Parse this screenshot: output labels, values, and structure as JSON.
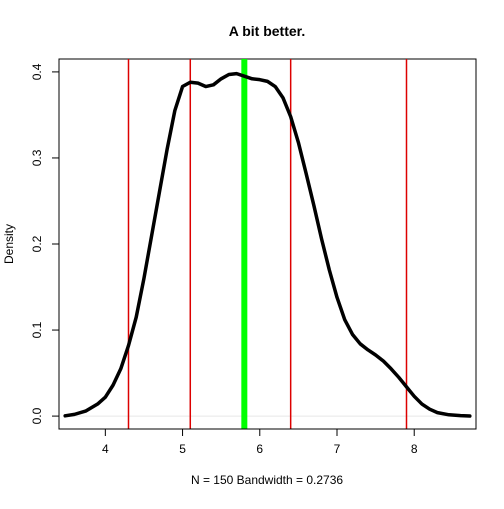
{
  "chart_data": {
    "type": "line",
    "title": "A bit better.",
    "xlabel": "N = 150   Bandwidth = 0.2736",
    "ylabel": "Density",
    "xlim": [
      3.4,
      8.8
    ],
    "ylim": [
      -0.015,
      0.415
    ],
    "x_ticks": [
      4,
      5,
      6,
      7,
      8
    ],
    "x_tick_labels": [
      "4",
      "5",
      "6",
      "7",
      "8"
    ],
    "y_ticks": [
      0.0,
      0.1,
      0.2,
      0.3,
      0.4
    ],
    "y_tick_labels": [
      "0.0",
      "0.1",
      "0.2",
      "0.3",
      "0.4"
    ],
    "grid": false,
    "legend": "none",
    "series": [
      {
        "x": [
          3.48,
          3.6,
          3.75,
          3.9,
          4.0,
          4.1,
          4.2,
          4.3,
          4.4,
          4.5,
          4.6,
          4.7,
          4.8,
          4.9,
          5.0,
          5.1,
          5.2,
          5.3,
          5.4,
          5.5,
          5.6,
          5.7,
          5.8,
          5.9,
          6.0,
          6.1,
          6.2,
          6.3,
          6.4,
          6.5,
          6.6,
          6.7,
          6.8,
          6.9,
          7.0,
          7.1,
          7.2,
          7.3,
          7.4,
          7.5,
          7.6,
          7.7,
          7.8,
          7.9,
          8.0,
          8.1,
          8.2,
          8.3,
          8.45,
          8.6,
          8.72
        ],
        "values": [
          0.0003,
          0.002,
          0.006,
          0.014,
          0.022,
          0.036,
          0.055,
          0.082,
          0.115,
          0.16,
          0.21,
          0.26,
          0.31,
          0.355,
          0.383,
          0.388,
          0.387,
          0.383,
          0.385,
          0.392,
          0.397,
          0.398,
          0.395,
          0.392,
          0.391,
          0.389,
          0.383,
          0.37,
          0.348,
          0.318,
          0.282,
          0.245,
          0.206,
          0.17,
          0.138,
          0.112,
          0.095,
          0.084,
          0.077,
          0.071,
          0.064,
          0.055,
          0.045,
          0.034,
          0.023,
          0.014,
          0.008,
          0.004,
          0.0015,
          0.0005,
          0.0001
        ],
        "color": "#000000"
      }
    ],
    "vlines": [
      {
        "x": 4.3,
        "color": "#dd0000",
        "role": "minimum"
      },
      {
        "x": 5.1,
        "color": "#dd0000",
        "role": "quartile-1"
      },
      {
        "x": 6.4,
        "color": "#dd0000",
        "role": "quartile-3"
      },
      {
        "x": 7.9,
        "color": "#dd0000",
        "role": "maximum"
      },
      {
        "x": 5.8,
        "color": "#00ff00",
        "role": "median"
      }
    ]
  }
}
